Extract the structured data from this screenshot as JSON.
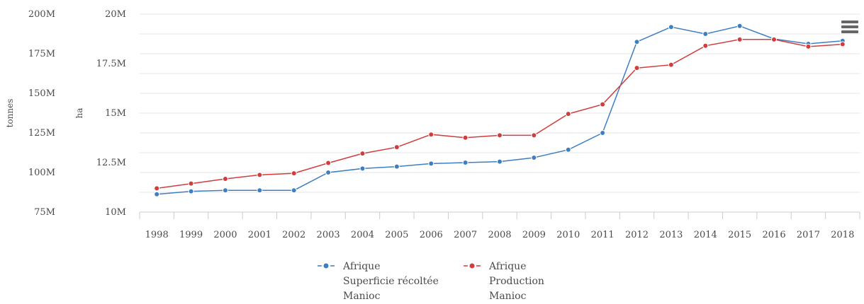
{
  "chart_data": {
    "type": "line",
    "x": [
      "1998",
      "1999",
      "2000",
      "2001",
      "2002",
      "2003",
      "2004",
      "2005",
      "2006",
      "2007",
      "2008",
      "2009",
      "2010",
      "2011",
      "2012",
      "2013",
      "2014",
      "2015",
      "2016",
      "2017",
      "2018"
    ],
    "axes": {
      "left_outer": {
        "label": "tonnes",
        "ticks": [
          "75M",
          "100M",
          "125M",
          "150M",
          "175M",
          "200M"
        ],
        "min": 75,
        "max": 200
      },
      "left_inner": {
        "label": "ha",
        "ticks": [
          "10M",
          "12.5M",
          "15M",
          "17.5M",
          "20M"
        ],
        "min": 10,
        "max": 20
      }
    },
    "series": [
      {
        "name": "Afrique Superficie récoltée Manioc",
        "legend_lines": [
          "Afrique",
          "Superficie récoltée",
          "Manioc"
        ],
        "axis": "left_inner",
        "color": "#3d7fc1",
        "values": [
          10.9,
          11.05,
          11.1,
          11.1,
          11.1,
          12.0,
          12.2,
          12.3,
          12.45,
          12.5,
          12.55,
          12.75,
          13.15,
          14.0,
          18.6,
          19.35,
          19.0,
          19.4,
          18.75,
          18.5,
          18.65
        ]
      },
      {
        "name": "Afrique Production Manioc",
        "legend_lines": [
          "Afrique",
          "Production",
          "Manioc"
        ],
        "axis": "left_outer",
        "color": "#d23c3c",
        "values": [
          90,
          93,
          96,
          98.5,
          99.5,
          106,
          112,
          116,
          124,
          122,
          123.5,
          123.5,
          137,
          143,
          166,
          168,
          180,
          184,
          184,
          179.5,
          181
        ]
      }
    ],
    "grid": true,
    "legend_position": "bottom-center"
  },
  "ui": {
    "menu_icon": "hamburger-icon"
  }
}
